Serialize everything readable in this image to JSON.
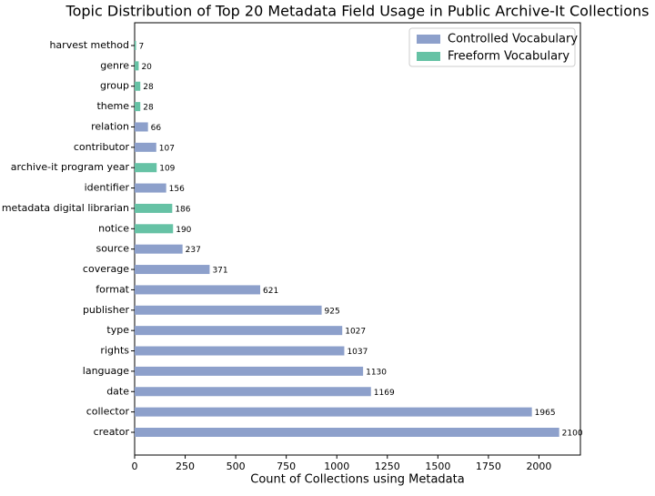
{
  "chart_data": {
    "type": "barh",
    "title": "Topic Distribution of Top 20 Metadata Field Usage in Public Archive-It Collections",
    "xlabel": "Count of Collections using Metadata",
    "categories": [
      "harvest method",
      "genre",
      "group",
      "theme",
      "relation",
      "contributor",
      "archive-it program year",
      "identifier",
      "metadata digital librarian",
      "notice",
      "source",
      "coverage",
      "format",
      "publisher",
      "type",
      "rights",
      "language",
      "date",
      "collector",
      "creator"
    ],
    "series": [
      {
        "name": "Controlled Vocabulary",
        "color": "#8da0cb",
        "values": [
          null,
          null,
          null,
          null,
          66,
          107,
          null,
          156,
          null,
          null,
          237,
          371,
          621,
          925,
          1027,
          1037,
          1130,
          1169,
          1965,
          2100
        ]
      },
      {
        "name": "Freeform Vocabulary",
        "color": "#66c2a5",
        "values": [
          7,
          20,
          28,
          28,
          null,
          null,
          109,
          null,
          186,
          190,
          null,
          null,
          null,
          null,
          null,
          null,
          null,
          null,
          null,
          null
        ]
      }
    ],
    "xlim": [
      0,
      2205
    ],
    "xticks": [
      0,
      250,
      500,
      750,
      1000,
      1250,
      1500,
      1750,
      2000
    ],
    "legend": "upper right"
  }
}
